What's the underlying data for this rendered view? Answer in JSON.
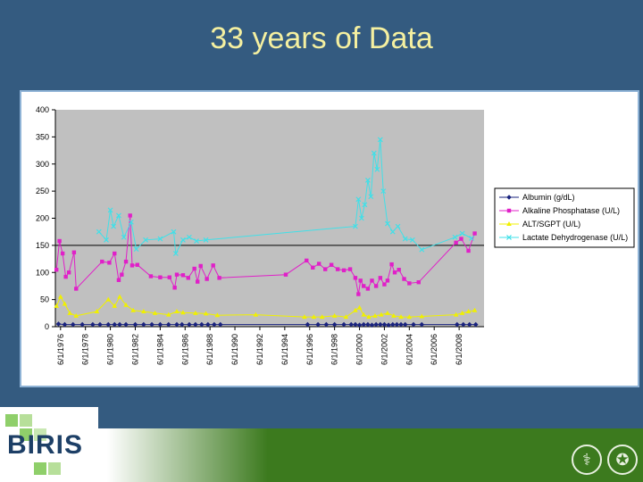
{
  "slide": {
    "title": "33 years of Data",
    "logo_text": "BIRIS"
  },
  "colors": {
    "background": "#345b80",
    "title": "#f5f0a0",
    "plot_area": "#c0c0c0",
    "albumin": "#1a237e",
    "alk_phos": "#e020c8",
    "alt": "#f0f000",
    "ldh": "#40e0e8",
    "band": "#3c7a1e"
  },
  "chart_data": {
    "type": "line",
    "ylim": [
      0,
      400
    ],
    "yticks": [
      0,
      50,
      100,
      150,
      200,
      250,
      300,
      350,
      400
    ],
    "xlim": [
      "1976-01-01",
      "2010-06-01"
    ],
    "xtick_labels": [
      "6/1/1976",
      "6/1/1978",
      "6/1/1980",
      "6/1/1982",
      "6/1/1984",
      "6/1/1986",
      "6/1/1988",
      "6/1/1990",
      "6/1/1992",
      "6/1/1994",
      "6/1/1996",
      "6/1/1998",
      "6/1/2000",
      "6/1/2002",
      "6/1/2004",
      "6/1/2006",
      "6/1/2008"
    ],
    "reference_line": 150,
    "legend_position": "right",
    "series": [
      {
        "name": "Albumin (g/dL)",
        "marker": "diamond",
        "points": [
          [
            "1976-04-01",
            5
          ],
          [
            "1976-10-01",
            4
          ],
          [
            "1977-06-01",
            4
          ],
          [
            "1978-03-01",
            4
          ],
          [
            "1979-01-01",
            4
          ],
          [
            "1979-08-01",
            4
          ],
          [
            "1980-04-01",
            4
          ],
          [
            "1980-10-01",
            4
          ],
          [
            "1981-03-01",
            4
          ],
          [
            "1981-09-01",
            4
          ],
          [
            "1982-06-01",
            4
          ],
          [
            "1983-02-01",
            4
          ],
          [
            "1983-10-01",
            4
          ],
          [
            "1984-06-01",
            4
          ],
          [
            "1985-02-01",
            4
          ],
          [
            "1985-10-01",
            4
          ],
          [
            "1986-03-01",
            4
          ],
          [
            "1986-10-01",
            4
          ],
          [
            "1987-04-01",
            4
          ],
          [
            "1987-10-01",
            4
          ],
          [
            "1988-04-01",
            4
          ],
          [
            "1988-10-01",
            4
          ],
          [
            "1989-04-01",
            4
          ],
          [
            "1996-04-01",
            4
          ],
          [
            "1997-02-01",
            4
          ],
          [
            "1997-10-01",
            4
          ],
          [
            "1998-06-01",
            4
          ],
          [
            "1999-03-01",
            4
          ],
          [
            "1999-10-01",
            4
          ],
          [
            "2000-02-01",
            4
          ],
          [
            "2000-06-01",
            3
          ],
          [
            "2000-10-01",
            4
          ],
          [
            "2001-02-01",
            4
          ],
          [
            "2001-06-01",
            3
          ],
          [
            "2001-10-01",
            4
          ],
          [
            "2002-02-01",
            4
          ],
          [
            "2002-06-01",
            4
          ],
          [
            "2002-10-01",
            3
          ],
          [
            "2003-02-01",
            4
          ],
          [
            "2003-06-01",
            4
          ],
          [
            "2003-10-01",
            4
          ],
          [
            "2004-02-01",
            4
          ],
          [
            "2004-10-01",
            4
          ],
          [
            "2005-06-01",
            4
          ],
          [
            "2008-04-01",
            4
          ],
          [
            "2008-10-01",
            4
          ],
          [
            "2009-04-01",
            4
          ],
          [
            "2009-10-01",
            4
          ]
        ]
      },
      {
        "name": "Alkaline Phosphatase (U/L)",
        "marker": "square",
        "points": [
          [
            "1976-02-01",
            105
          ],
          [
            "1976-05-01",
            158
          ],
          [
            "1976-08-01",
            135
          ],
          [
            "1976-11-01",
            92
          ],
          [
            "1977-02-01",
            100
          ],
          [
            "1977-07-01",
            137
          ],
          [
            "1977-09-01",
            70
          ],
          [
            "1979-10-01",
            120
          ],
          [
            "1980-05-01",
            118
          ],
          [
            "1980-10-01",
            135
          ],
          [
            "1981-02-01",
            86
          ],
          [
            "1981-05-01",
            96
          ],
          [
            "1981-09-01",
            120
          ],
          [
            "1982-01-01",
            205
          ],
          [
            "1982-03-01",
            113
          ],
          [
            "1982-08-01",
            114
          ],
          [
            "1983-09-01",
            93
          ],
          [
            "1984-06-01",
            91
          ],
          [
            "1985-03-01",
            91
          ],
          [
            "1985-08-01",
            72
          ],
          [
            "1985-10-01",
            96
          ],
          [
            "1986-04-01",
            95
          ],
          [
            "1986-09-01",
            90
          ],
          [
            "1987-03-01",
            107
          ],
          [
            "1987-06-01",
            83
          ],
          [
            "1987-09-01",
            112
          ],
          [
            "1988-03-01",
            88
          ],
          [
            "1988-09-01",
            113
          ],
          [
            "1989-03-01",
            90
          ],
          [
            "1994-07-01",
            96
          ],
          [
            "1996-03-01",
            122
          ],
          [
            "1996-09-01",
            109
          ],
          [
            "1997-03-01",
            116
          ],
          [
            "1997-09-01",
            106
          ],
          [
            "1998-03-01",
            114
          ],
          [
            "1998-09-01",
            106
          ],
          [
            "1999-03-01",
            104
          ],
          [
            "1999-09-01",
            106
          ],
          [
            "2000-02-01",
            90
          ],
          [
            "2000-05-01",
            60
          ],
          [
            "2000-07-01",
            85
          ],
          [
            "2000-10-01",
            75
          ],
          [
            "2001-02-01",
            70
          ],
          [
            "2001-06-01",
            85
          ],
          [
            "2001-10-01",
            75
          ],
          [
            "2002-02-01",
            90
          ],
          [
            "2002-06-01",
            78
          ],
          [
            "2002-09-01",
            85
          ],
          [
            "2003-01-01",
            115
          ],
          [
            "2003-04-01",
            100
          ],
          [
            "2003-08-01",
            105
          ],
          [
            "2004-01-01",
            88
          ],
          [
            "2004-06-01",
            80
          ],
          [
            "2005-03-01",
            82
          ],
          [
            "2008-03-01",
            155
          ],
          [
            "2008-08-01",
            162
          ],
          [
            "2009-03-01",
            140
          ],
          [
            "2009-09-01",
            172
          ]
        ]
      },
      {
        "name": "ALT/SGPT (U/L)",
        "marker": "triangle",
        "points": [
          [
            "1976-02-01",
            38
          ],
          [
            "1976-06-01",
            55
          ],
          [
            "1976-10-01",
            42
          ],
          [
            "1977-03-01",
            25
          ],
          [
            "1977-09-01",
            20
          ],
          [
            "1979-05-01",
            28
          ],
          [
            "1980-04-01",
            50
          ],
          [
            "1980-10-01",
            38
          ],
          [
            "1981-03-01",
            55
          ],
          [
            "1981-09-01",
            40
          ],
          [
            "1982-04-01",
            30
          ],
          [
            "1983-02-01",
            28
          ],
          [
            "1984-01-01",
            25
          ],
          [
            "1985-02-01",
            22
          ],
          [
            "1985-10-01",
            28
          ],
          [
            "1986-04-01",
            26
          ],
          [
            "1987-04-01",
            25
          ],
          [
            "1988-02-01",
            24
          ],
          [
            "1989-01-01",
            21
          ],
          [
            "1992-02-01",
            22
          ],
          [
            "1996-01-01",
            18
          ],
          [
            "1996-10-01",
            18
          ],
          [
            "1997-06-01",
            18
          ],
          [
            "1998-06-01",
            20
          ],
          [
            "1999-05-01",
            18
          ],
          [
            "2000-02-01",
            30
          ],
          [
            "2000-06-01",
            35
          ],
          [
            "2000-10-01",
            22
          ],
          [
            "2001-03-01",
            18
          ],
          [
            "2001-09-01",
            20
          ],
          [
            "2002-03-01",
            22
          ],
          [
            "2002-09-01",
            25
          ],
          [
            "2003-03-01",
            20
          ],
          [
            "2003-10-01",
            18
          ],
          [
            "2004-06-01",
            18
          ],
          [
            "2005-06-01",
            19
          ],
          [
            "2008-03-01",
            22
          ],
          [
            "2008-09-01",
            25
          ],
          [
            "2009-03-01",
            28
          ],
          [
            "2009-09-01",
            30
          ]
        ]
      },
      {
        "name": "Lactate Dehydrogenase (U/L)",
        "marker": "x",
        "points": [
          [
            "1979-07-01",
            175
          ],
          [
            "1980-02-01",
            160
          ],
          [
            "1980-06-01",
            215
          ],
          [
            "1980-09-01",
            185
          ],
          [
            "1981-02-01",
            205
          ],
          [
            "1981-07-01",
            165
          ],
          [
            "1982-02-01",
            193
          ],
          [
            "1982-07-01",
            143
          ],
          [
            "1983-04-01",
            160
          ],
          [
            "1984-06-01",
            162
          ],
          [
            "1985-07-01",
            175
          ],
          [
            "1985-09-01",
            135
          ],
          [
            "1986-04-01",
            160
          ],
          [
            "1986-10-01",
            165
          ],
          [
            "1987-05-01",
            158
          ],
          [
            "1988-02-01",
            160
          ],
          [
            "2000-02-01",
            185
          ],
          [
            "2000-05-01",
            235
          ],
          [
            "2000-08-01",
            200
          ],
          [
            "2000-11-01",
            225
          ],
          [
            "2001-02-01",
            270
          ],
          [
            "2001-05-01",
            240
          ],
          [
            "2001-08-01",
            320
          ],
          [
            "2001-11-01",
            290
          ],
          [
            "2002-02-01",
            345
          ],
          [
            "2002-05-01",
            250
          ],
          [
            "2002-09-01",
            190
          ],
          [
            "2003-02-01",
            175
          ],
          [
            "2003-07-01",
            185
          ],
          [
            "2004-02-01",
            162
          ],
          [
            "2004-09-01",
            160
          ],
          [
            "2005-06-01",
            142
          ],
          [
            "2008-02-01",
            165
          ],
          [
            "2008-09-01",
            172
          ],
          [
            "2009-06-01",
            163
          ]
        ]
      }
    ]
  }
}
